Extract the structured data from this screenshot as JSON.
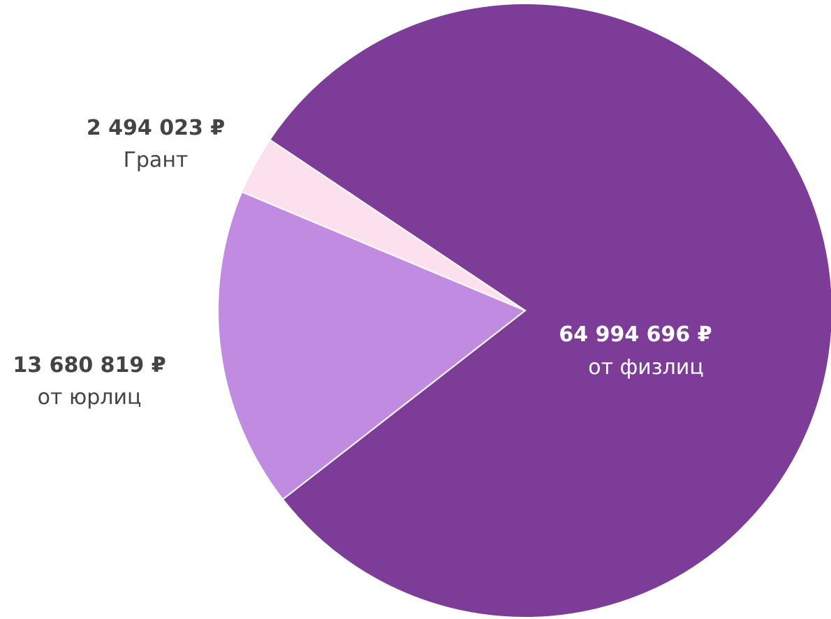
{
  "chart_data": {
    "type": "pie",
    "slices": [
      {
        "value": 64994696,
        "value_label": "64 994 696 ₽",
        "label": "от физлиц",
        "color": "#7d3c98",
        "text_color": "#ffffff"
      },
      {
        "value": 13680819,
        "value_label": "13 680 819 ₽",
        "label": "от юрлиц",
        "color": "#c08be0",
        "text_color": "#444444"
      },
      {
        "value": 2494023,
        "value_label": "2 494 023 ₽",
        "label": "Грант",
        "color": "#fde0ee",
        "text_color": "#444444"
      }
    ],
    "legend": "none"
  }
}
